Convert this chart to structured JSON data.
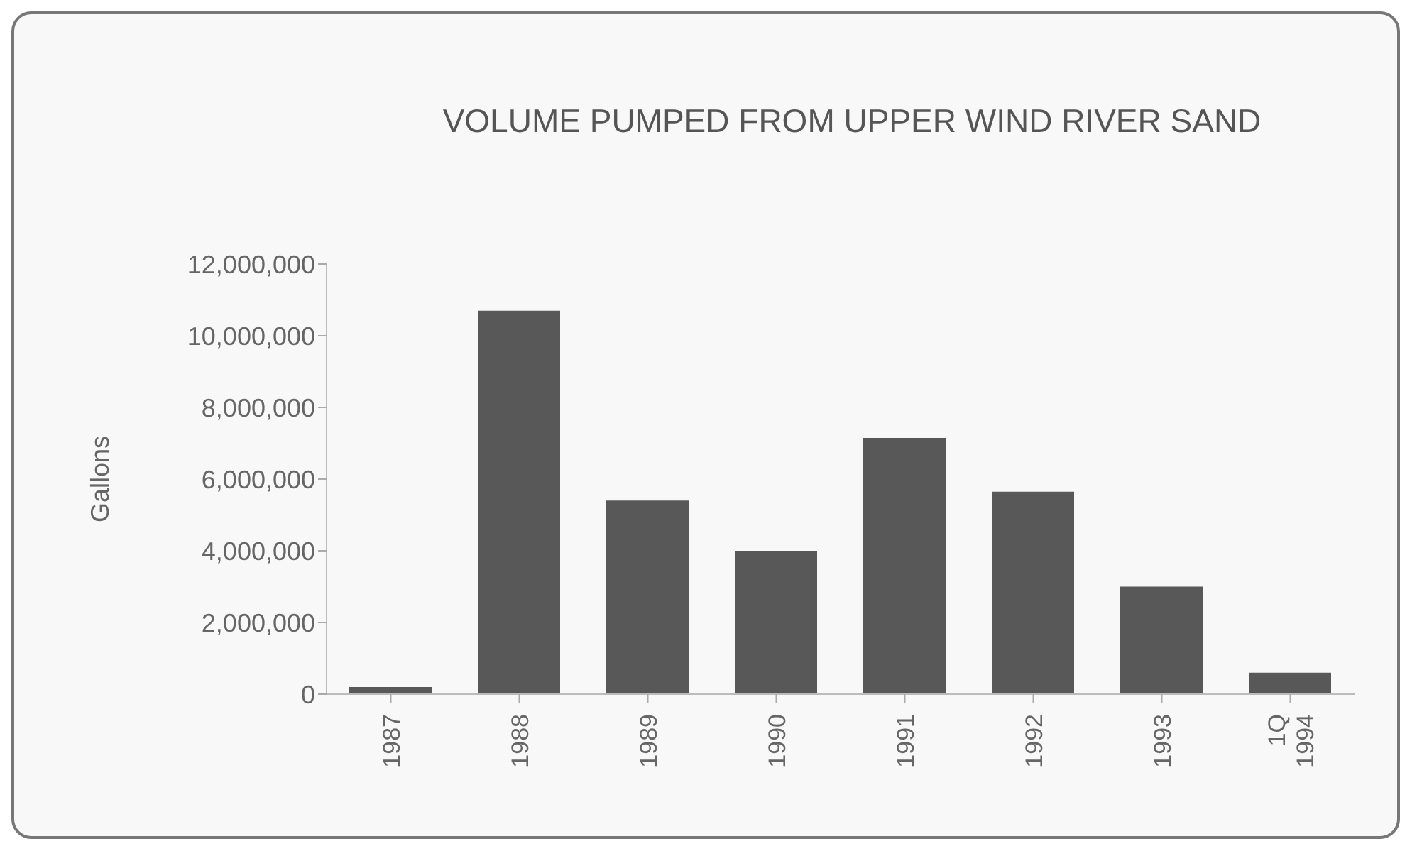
{
  "chart_data": {
    "type": "bar",
    "title": "VOLUME PUMPED FROM UPPER WIND RIVER SAND",
    "ylabel": "Gallons",
    "categories": [
      "1987",
      "1988",
      "1989",
      "1990",
      "1991",
      "1992",
      "1993",
      "1Q 1994"
    ],
    "values": [
      200000,
      10700000,
      5400000,
      4000000,
      7150000,
      5650000,
      3000000,
      600000
    ],
    "color": "#585858",
    "ylim": [
      0,
      12000000
    ],
    "yticks": [
      0,
      {
        "value": 2000000,
        "label": "2,000,000"
      },
      {
        "value": 4000000,
        "label": "4,000,000"
      },
      {
        "value": 6000000,
        "label": "6,000,000"
      },
      {
        "value": 8000000,
        "label": "8,000,000"
      },
      {
        "value": 10000000,
        "label": "10,000,000"
      },
      {
        "value": 12000000,
        "label": "12,000,000"
      }
    ],
    "grid": false,
    "legend": false
  }
}
